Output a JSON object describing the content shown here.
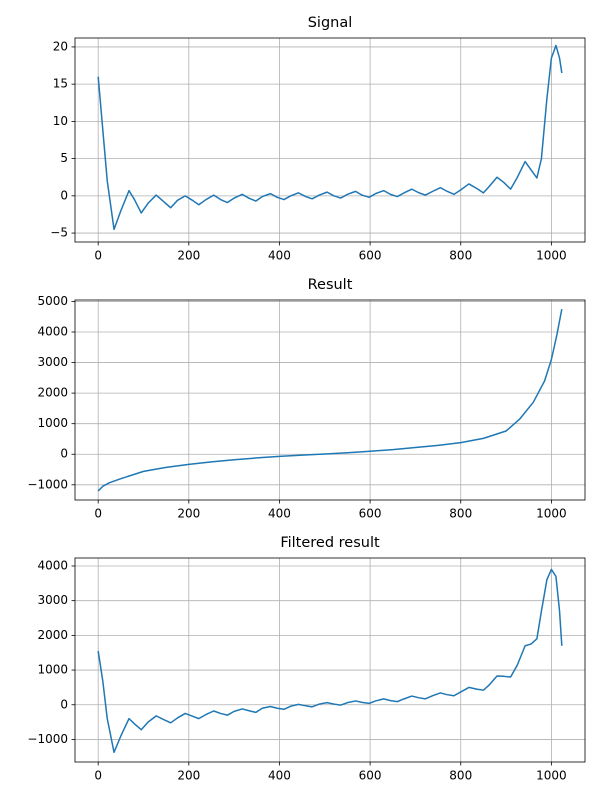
{
  "chart_data": [
    {
      "type": "line",
      "title": "Signal",
      "color": "#1f77b4",
      "grid": true,
      "x": [
        0,
        10,
        20,
        35,
        50,
        68,
        80,
        95,
        110,
        128,
        145,
        160,
        175,
        192,
        208,
        222,
        238,
        255,
        270,
        285,
        300,
        318,
        332,
        348,
        362,
        380,
        395,
        410,
        425,
        442,
        458,
        472,
        488,
        505,
        520,
        535,
        550,
        568,
        582,
        598,
        612,
        630,
        645,
        660,
        675,
        692,
        708,
        722,
        738,
        755,
        770,
        785,
        800,
        818,
        835,
        850,
        862,
        880,
        895,
        910,
        925,
        942,
        955,
        968,
        978,
        990,
        1000,
        1010,
        1018,
        1023
      ],
      "values": [
        16,
        9,
        2,
        -4.5,
        -2,
        0.7,
        -0.5,
        -2.3,
        -1,
        0.1,
        -0.8,
        -1.6,
        -0.6,
        0,
        -0.6,
        -1.2,
        -0.5,
        0.1,
        -0.5,
        -0.9,
        -0.3,
        0.2,
        -0.3,
        -0.7,
        -0.1,
        0.3,
        -0.2,
        -0.5,
        0,
        0.4,
        -0.1,
        -0.4,
        0.1,
        0.5,
        0,
        -0.3,
        0.2,
        0.6,
        0.1,
        -0.2,
        0.3,
        0.7,
        0.2,
        -0.1,
        0.4,
        0.9,
        0.4,
        0.1,
        0.6,
        1.1,
        0.6,
        0.2,
        0.8,
        1.6,
        1.0,
        0.4,
        1.2,
        2.5,
        1.8,
        0.9,
        2.5,
        4.6,
        3.5,
        2.4,
        5,
        13,
        18.5,
        20.2,
        18.5,
        16.5
      ],
      "xlim": [
        -51.15,
        1074.15
      ],
      "ylim": [
        -6.2,
        21.2
      ],
      "xticks": [
        0,
        200,
        400,
        600,
        800,
        1000
      ],
      "yticks": [
        {
          "value": -5,
          "label": "−5"
        },
        0,
        5,
        10,
        15,
        20
      ]
    },
    {
      "type": "line",
      "title": "Result",
      "color": "#1f77b4",
      "grid": true,
      "x": [
        0,
        10,
        25,
        50,
        100,
        150,
        200,
        250,
        300,
        350,
        400,
        450,
        500,
        550,
        600,
        650,
        700,
        750,
        800,
        850,
        900,
        930,
        960,
        985,
        1000,
        1012,
        1023
      ],
      "values": [
        -1200,
        -1050,
        -930,
        -800,
        -560,
        -430,
        -330,
        -250,
        -180,
        -120,
        -70,
        -30,
        10,
        50,
        100,
        150,
        220,
        290,
        380,
        520,
        760,
        1150,
        1700,
        2400,
        3100,
        3900,
        4750
      ],
      "xlim": [
        -51.15,
        1074.15
      ],
      "ylim": [
        -1497,
        5047
      ],
      "xticks": [
        0,
        200,
        400,
        600,
        800,
        1000
      ],
      "yticks": [
        {
          "value": -1000,
          "label": "−1000"
        },
        0,
        1000,
        2000,
        3000,
        4000,
        5000
      ]
    },
    {
      "type": "line",
      "title": "Filtered result",
      "color": "#1f77b4",
      "grid": true,
      "x": [
        0,
        10,
        20,
        35,
        50,
        68,
        80,
        95,
        110,
        128,
        145,
        160,
        175,
        192,
        208,
        222,
        238,
        255,
        270,
        285,
        300,
        318,
        332,
        348,
        362,
        380,
        395,
        410,
        425,
        442,
        458,
        472,
        488,
        505,
        520,
        535,
        550,
        568,
        582,
        598,
        612,
        630,
        645,
        660,
        675,
        692,
        708,
        722,
        738,
        755,
        770,
        785,
        800,
        818,
        835,
        850,
        862,
        880,
        895,
        910,
        925,
        942,
        955,
        968,
        978,
        990,
        1000,
        1010,
        1018,
        1023
      ],
      "values": [
        1550,
        700,
        -400,
        -1370,
        -900,
        -400,
        -550,
        -720,
        -500,
        -320,
        -430,
        -520,
        -380,
        -250,
        -330,
        -400,
        -280,
        -180,
        -250,
        -300,
        -190,
        -120,
        -170,
        -220,
        -100,
        -50,
        -100,
        -130,
        -40,
        10,
        -30,
        -60,
        20,
        60,
        20,
        -10,
        60,
        110,
        70,
        40,
        110,
        170,
        120,
        90,
        170,
        250,
        200,
        170,
        260,
        340,
        290,
        260,
        370,
        500,
        450,
        420,
        560,
        830,
        820,
        800,
        1150,
        1700,
        1750,
        1900,
        2700,
        3600,
        3900,
        3700,
        2700,
        1700
      ],
      "xlim": [
        -51.15,
        1074.15
      ],
      "ylim": [
        -1650,
        4230
      ],
      "xticks": [
        0,
        200,
        400,
        600,
        800,
        1000
      ],
      "yticks": [
        {
          "value": -1000,
          "label": "−1000"
        },
        0,
        1000,
        2000,
        3000,
        4000
      ]
    }
  ]
}
